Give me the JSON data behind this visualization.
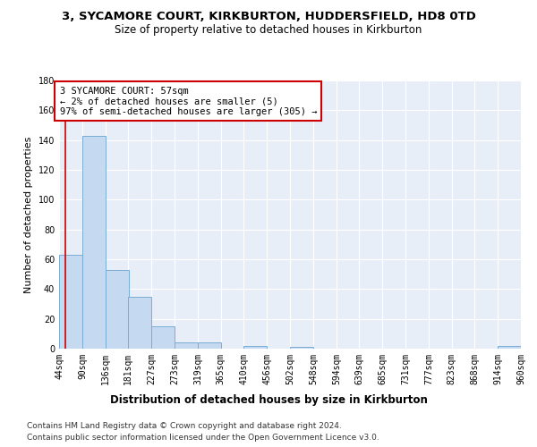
{
  "title_line1": "3, SYCAMORE COURT, KIRKBURTON, HUDDERSFIELD, HD8 0TD",
  "title_line2": "Size of property relative to detached houses in Kirkburton",
  "xlabel": "Distribution of detached houses by size in Kirkburton",
  "ylabel": "Number of detached properties",
  "bin_edges": [
    44,
    90,
    136,
    181,
    227,
    273,
    319,
    365,
    410,
    456,
    502,
    548,
    594,
    639,
    685,
    731,
    777,
    823,
    868,
    914,
    960
  ],
  "bar_heights": [
    63,
    143,
    53,
    35,
    15,
    4,
    4,
    0,
    2,
    0,
    1,
    0,
    0,
    0,
    0,
    0,
    0,
    0,
    0,
    2
  ],
  "bar_color": "#c5d9f0",
  "bar_edge_color": "#7aadd4",
  "ylim": [
    0,
    180
  ],
  "yticks": [
    0,
    20,
    40,
    60,
    80,
    100,
    120,
    140,
    160,
    180
  ],
  "property_size": 57,
  "annotation_text_line1": "3 SYCAMORE COURT: 57sqm",
  "annotation_text_line2": "← 2% of detached houses are smaller (5)",
  "annotation_text_line3": "97% of semi-detached houses are larger (305) →",
  "annotation_box_color": "#ffffff",
  "annotation_box_edge_color": "#cc0000",
  "marker_line_color": "#cc0000",
  "footnote1": "Contains HM Land Registry data © Crown copyright and database right 2024.",
  "footnote2": "Contains public sector information licensed under the Open Government Licence v3.0.",
  "background_color": "#e8eef8",
  "grid_color": "#ffffff",
  "title_fontsize": 9.5,
  "subtitle_fontsize": 8.5,
  "ylabel_fontsize": 8,
  "xlabel_fontsize": 8.5,
  "tick_fontsize": 7,
  "annotation_fontsize": 7.5,
  "footnote_fontsize": 6.5
}
